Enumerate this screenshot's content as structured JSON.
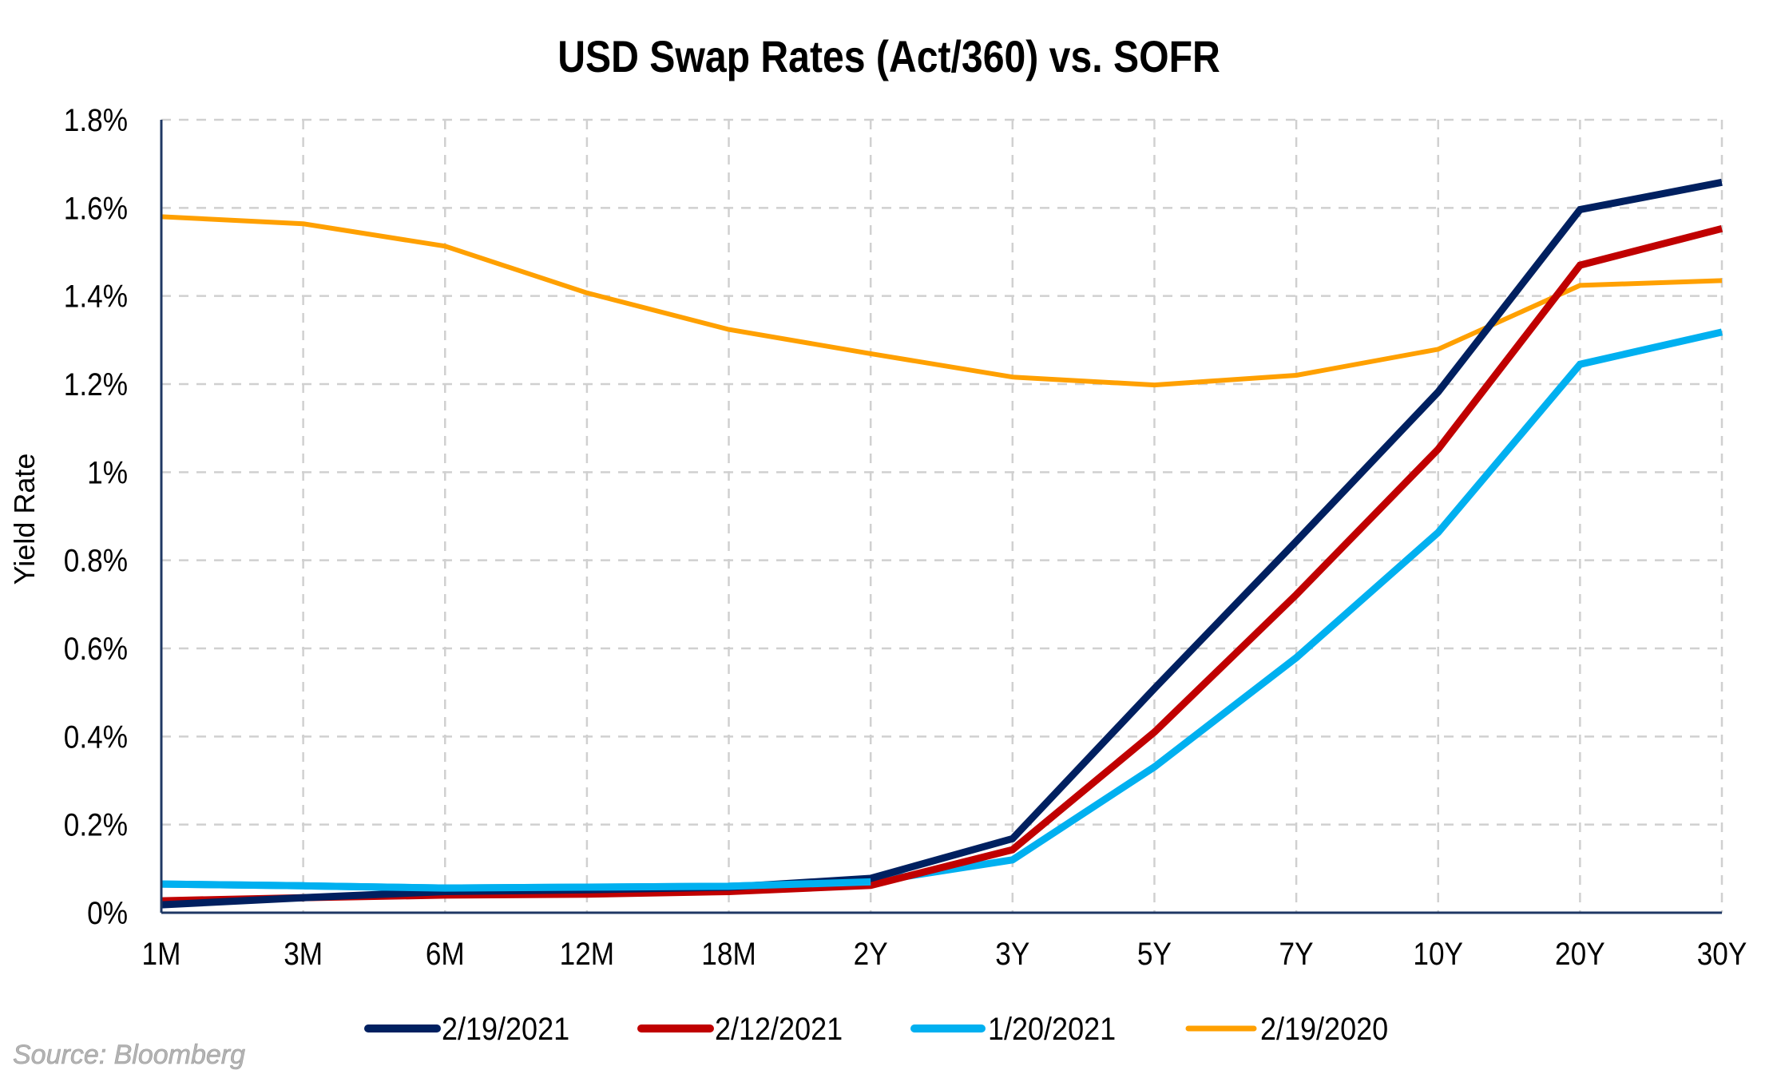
{
  "chart_data": {
    "type": "line",
    "title": "USD Swap Rates (Act/360) vs. SOFR",
    "xlabel": "",
    "ylabel": "Yield Rate",
    "categories": [
      "1M",
      "3M",
      "6M",
      "12M",
      "18M",
      "2Y",
      "3Y",
      "5Y",
      "7Y",
      "10Y",
      "20Y",
      "30Y"
    ],
    "ylim": [
      0,
      1.8
    ],
    "yticks": [
      0,
      0.2,
      0.4,
      0.6,
      0.8,
      1.0,
      1.2,
      1.4,
      1.6,
      1.8
    ],
    "ytick_labels": [
      "0%",
      "0.2%",
      "0.4%",
      "0.6%",
      "0.8%",
      "1%",
      "1.2%",
      "1.4%",
      "1.6%",
      "1.8%"
    ],
    "grid": true,
    "legend_position": "bottom",
    "series": [
      {
        "name": "2/19/2021",
        "color": "#002060",
        "values": [
          0.018,
          0.034,
          0.048,
          0.052,
          0.058,
          0.078,
          0.168,
          0.509,
          0.843,
          1.182,
          1.596,
          1.658
        ]
      },
      {
        "name": "2/12/2021",
        "color": "#C00000",
        "values": [
          0.027,
          0.034,
          0.04,
          0.042,
          0.048,
          0.062,
          0.143,
          0.41,
          0.722,
          1.052,
          1.47,
          1.553
        ]
      },
      {
        "name": "1/20/2021",
        "color": "#00B0F0",
        "values": [
          0.065,
          0.061,
          0.056,
          0.058,
          0.06,
          0.07,
          0.12,
          0.331,
          0.579,
          0.863,
          1.245,
          1.318
        ]
      },
      {
        "name": "2/19/2020",
        "color": "#FFA000",
        "values": [
          1.58,
          1.564,
          1.513,
          1.407,
          1.324,
          1.269,
          1.216,
          1.198,
          1.22,
          1.279,
          1.424,
          1.435
        ]
      }
    ],
    "annotations": [
      "Source: Bloomberg"
    ]
  },
  "source_note": "Source: Bloomberg"
}
